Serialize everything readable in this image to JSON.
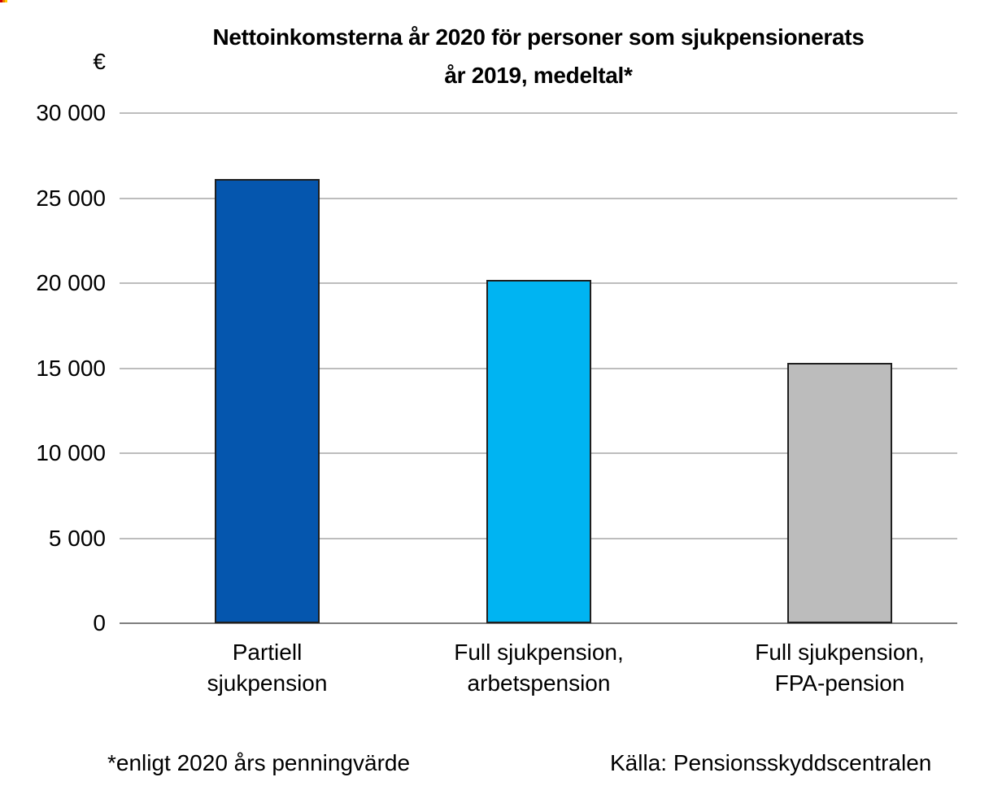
{
  "title": {
    "line1": "Nettoinkomsterna år 2020 för personer som sjukpensionerats",
    "line2": "år 2019, medeltal*"
  },
  "y_axis": {
    "unit": "€",
    "ticks": [
      "0",
      "5 000",
      "10 000",
      "15 000",
      "20 000",
      "25 000",
      "30 000"
    ]
  },
  "footer": {
    "footnote": "*enligt 2020 års penningvärde",
    "source": "Källa: Pensionsskyddscentralen"
  },
  "chart_data": {
    "type": "bar",
    "title": "Nettoinkomsterna år 2020 för personer som sjukpensionerats år 2019, medeltal*",
    "ylabel": "€",
    "xlabel": "",
    "categories": [
      "Partiell sjukpension",
      "Full sjukpension, arbetspension",
      "Full sjukpension, FPA-pension"
    ],
    "category_lines": [
      [
        "Partiell",
        "sjukpension"
      ],
      [
        "Full sjukpension,",
        "arbetspension"
      ],
      [
        "Full sjukpension,",
        "FPA-pension"
      ]
    ],
    "values": [
      26100,
      20150,
      15250
    ],
    "bar_colors": [
      "#0556ae",
      "#00b4f2",
      "#bcbcbc"
    ],
    "bar_border_color": "#1f1f1f",
    "gridline_color": "#bdbdbd",
    "ylim": [
      0,
      30000
    ],
    "ytick_step": 5000,
    "grid": true,
    "legend": "none",
    "footnote": "*enligt 2020 års penningvärde",
    "source": "Källa: Pensionsskyddscentralen"
  }
}
